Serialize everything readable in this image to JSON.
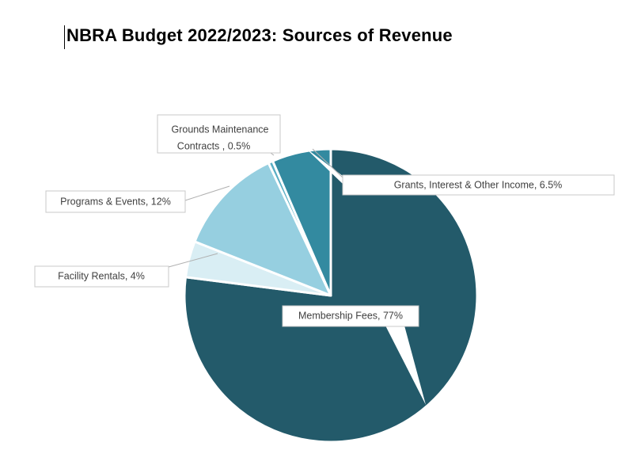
{
  "title": "NBRA Budget 2022/2023:  Sources of Revenue",
  "chart_data": {
    "type": "pie",
    "title": "NBRA Budget 2022/2023:  Sources of Revenue",
    "categories": [
      "Membership Fees",
      "Facility Rentals",
      "Programs & Events",
      "Grounds Maintenance Contracts",
      "Grants, Interest & Other Income"
    ],
    "values": [
      77,
      4,
      12,
      0.5,
      6.5
    ],
    "data_labels": [
      "Membership Fees, 77%",
      "Facility Rentals, 4%",
      "Programs & Events, 12%",
      "Grounds Maintenance Contracts , 0.5%",
      "Grants, Interest & Other Income, 6.5%"
    ],
    "colors": [
      "#235a6a",
      "#d9eef4",
      "#96cfe0",
      "#5aaec4",
      "#338aa0"
    ],
    "start_angle": "12 o'clock",
    "direction": "clockwise",
    "legend": "none"
  }
}
